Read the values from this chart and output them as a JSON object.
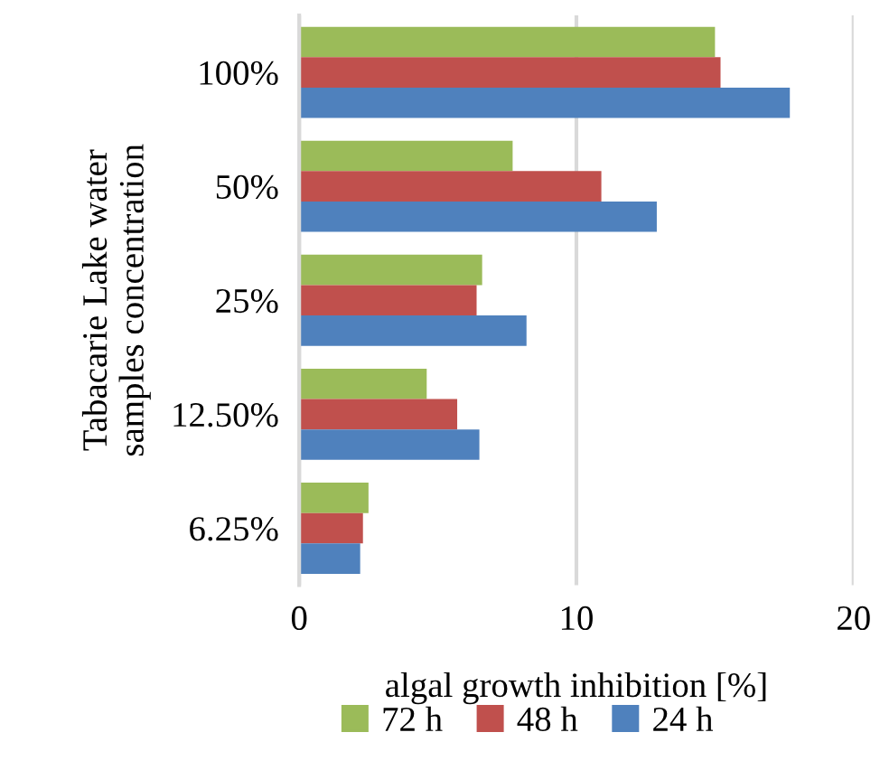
{
  "chart_data": {
    "type": "bar",
    "orientation": "horizontal",
    "categories": [
      "100%",
      "50%",
      "25%",
      "12.50%",
      "6.25%"
    ],
    "series": [
      {
        "name": "72 h",
        "color": "#9bbb59",
        "values": [
          15.0,
          7.7,
          6.6,
          4.6,
          2.5
        ]
      },
      {
        "name": "48 h",
        "color": "#c0504d",
        "values": [
          15.2,
          10.9,
          6.4,
          5.7,
          2.3
        ]
      },
      {
        "name": "24 h",
        "color": "#4f81bd",
        "values": [
          17.7,
          12.9,
          8.2,
          6.5,
          2.2
        ]
      }
    ],
    "xlabel": "algal growth inhibition [%]",
    "ylabel": "Tabacarie Lake water\nsamples concentration",
    "xlim": [
      0,
      20
    ],
    "xticks": [
      0,
      10,
      20
    ],
    "grid": "x",
    "legend": "bottom"
  }
}
